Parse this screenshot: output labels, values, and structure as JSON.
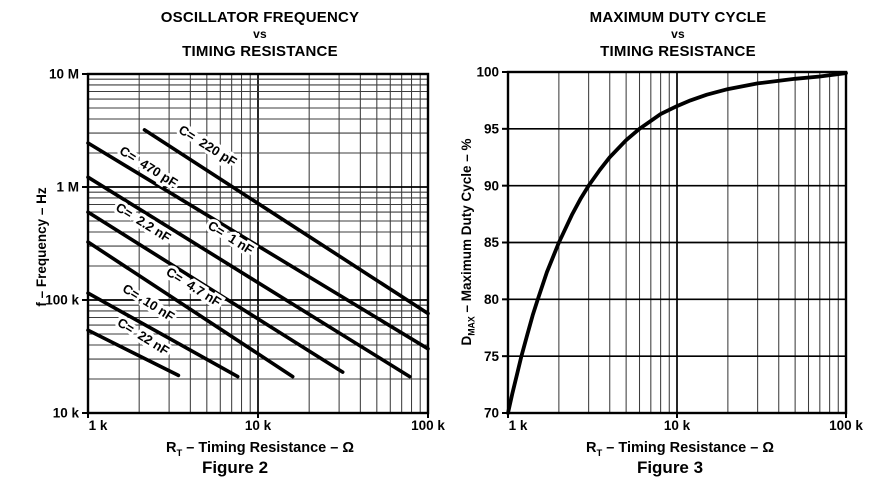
{
  "page": {
    "background": "#ffffff",
    "text_color": "#000000",
    "curve_color": "#000000",
    "major_grid_color": "#000000",
    "minor_grid_color": "#3d3d3d"
  },
  "chart_data": [
    {
      "id": "figure2",
      "type": "line",
      "title_lines": [
        "OSCILLATOR FREQUENCY",
        "vs",
        "TIMING RESISTANCE"
      ],
      "caption": "Figure 2",
      "x_scale": "log",
      "y_scale": "log",
      "xlim": [
        1000,
        100000
      ],
      "ylim": [
        10000,
        10000000
      ],
      "grid": "on",
      "x_axis": {
        "label_main": "R",
        "label_sub": "T",
        "label_rest": " – Timing Resistance – Ω",
        "ticks": [
          {
            "label": "1 k",
            "value": 1000
          },
          {
            "label": "10 k",
            "value": 10000
          },
          {
            "label": "100 k",
            "value": 100000
          }
        ]
      },
      "y_axis": {
        "label": "f – Frequency – Hz",
        "ticks": [
          {
            "label": "10 M",
            "value": 10000000
          },
          {
            "label": "1 M",
            "value": 1000000
          },
          {
            "label": "100 k",
            "value": 100000
          },
          {
            "label": "10 k",
            "value": 10000
          }
        ]
      },
      "series": [
        {
          "name": "C=  220 pF",
          "capacitance": "220 pF",
          "points": [
            [
              2150,
              3200000
            ],
            [
              100000,
              76000
            ]
          ],
          "label_anchor": [
            4900,
            2150000
          ]
        },
        {
          "name": "C=  470 pF",
          "capacitance": "470 pF",
          "points": [
            [
              1000,
              2450000
            ],
            [
              100000,
              37000
            ]
          ],
          "label_anchor": [
            2200,
            1400000
          ]
        },
        {
          "name": "C=  1 nF",
          "capacitance": "1 nF",
          "points": [
            [
              1000,
              1220000
            ],
            [
              78000,
              21000
            ]
          ],
          "label_anchor": [
            6700,
            330000
          ]
        },
        {
          "name": "C=  2.2 nF",
          "capacitance": "2.2 nF",
          "points": [
            [
              1000,
              600000
            ],
            [
              31500,
              23000
            ]
          ],
          "label_anchor": [
            2050,
            450000
          ]
        },
        {
          "name": "C=  4.7 nF",
          "capacitance": "4.7 nF",
          "points": [
            [
              1000,
              326000
            ],
            [
              16000,
              21000
            ]
          ],
          "label_anchor": [
            4050,
            121000
          ]
        },
        {
          "name": "C=  10 nF",
          "capacitance": "10 nF",
          "points": [
            [
              1000,
              115000
            ],
            [
              7600,
              21000
            ]
          ],
          "label_anchor": [
            2200,
            88000
          ]
        },
        {
          "name": "C=  22 nF",
          "capacitance": "22 nF",
          "points": [
            [
              1000,
              54000
            ],
            [
              3400,
              21500
            ]
          ],
          "label_anchor": [
            2050,
            44000
          ]
        }
      ]
    },
    {
      "id": "figure3",
      "type": "line",
      "title_lines": [
        "MAXIMUM DUTY CYCLE",
        "vs",
        "TIMING RESISTANCE"
      ],
      "caption": "Figure 3",
      "x_scale": "log",
      "y_scale": "linear",
      "xlim": [
        1000,
        100000
      ],
      "ylim": [
        70,
        100
      ],
      "grid": "on",
      "x_axis": {
        "label_main": "R",
        "label_sub": "T",
        "label_rest": " – Timing Resistance – Ω",
        "ticks": [
          {
            "label": "1 k",
            "value": 1000
          },
          {
            "label": "10 k",
            "value": 10000
          },
          {
            "label": "100 k",
            "value": 100000
          }
        ]
      },
      "y_axis": {
        "label_main": "D",
        "label_sub": "MAX",
        "label_rest": " – Maximum Duty Cycle – %",
        "ticks": [
          {
            "label": "100",
            "value": 100
          },
          {
            "label": "95",
            "value": 95
          },
          {
            "label": "90",
            "value": 90
          },
          {
            "label": "85",
            "value": 85
          },
          {
            "label": "80",
            "value": 80
          },
          {
            "label": "75",
            "value": 75
          },
          {
            "label": "70",
            "value": 70
          }
        ]
      },
      "series": [
        {
          "name": "maximum duty cycle",
          "points": [
            [
              1000,
              70
            ],
            [
              1060,
              71.7
            ],
            [
              1130,
              73.4
            ],
            [
              1200,
              75
            ],
            [
              1300,
              76.9
            ],
            [
              1400,
              78.6
            ],
            [
              1500,
              80
            ],
            [
              1700,
              82.4
            ],
            [
              2000,
              85
            ],
            [
              2400,
              87.5
            ],
            [
              2700,
              88.9
            ],
            [
              3000,
              90
            ],
            [
              3500,
              91.4
            ],
            [
              4000,
              92.5
            ],
            [
              5000,
              94
            ],
            [
              6000,
              95
            ],
            [
              7000,
              95.7
            ],
            [
              8000,
              96.3
            ],
            [
              10000,
              97
            ],
            [
              12000,
              97.5
            ],
            [
              15000,
              98
            ],
            [
              20000,
              98.5
            ],
            [
              30000,
              99
            ],
            [
              50000,
              99.4
            ],
            [
              70000,
              99.6
            ],
            [
              100000,
              99.9
            ]
          ]
        }
      ]
    }
  ]
}
